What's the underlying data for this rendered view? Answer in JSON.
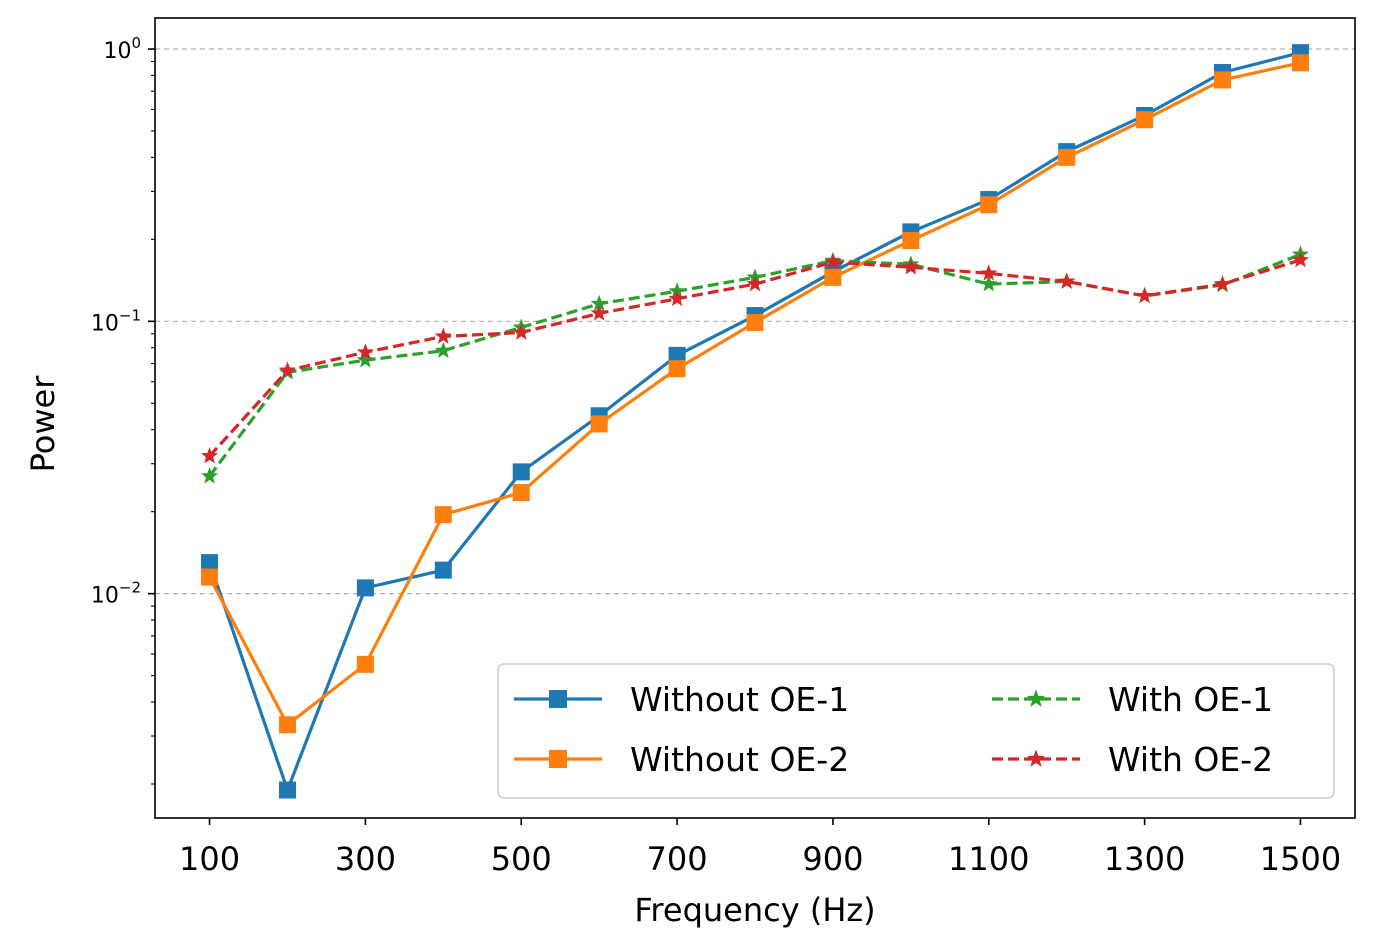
{
  "chart_data": {
    "type": "line",
    "title": "",
    "xlabel": "Frequency (Hz)",
    "ylabel": "Power",
    "yscale": "log",
    "ylim": [
      0.0015,
      1.3
    ],
    "xlim": [
      30,
      1570
    ],
    "x": [
      100,
      200,
      300,
      400,
      500,
      600,
      700,
      800,
      900,
      1000,
      1100,
      1200,
      1300,
      1400,
      1500
    ],
    "xticks": [
      100,
      300,
      500,
      700,
      900,
      1100,
      1300,
      1500
    ],
    "xtick_labels": [
      "100",
      "300",
      "500",
      "700",
      "900",
      "1100",
      "1300",
      "1500"
    ],
    "yticks": [
      {
        "value": 1,
        "base": "10",
        "exp": "0"
      },
      {
        "value": 0.1,
        "base": "10",
        "exp": "−1"
      },
      {
        "value": 0.01,
        "base": "10",
        "exp": "−2"
      }
    ],
    "grid": "y-major-dashed",
    "legend_position": "bottom-right",
    "series": [
      {
        "name": "Without OE-1",
        "color": "#1f77b4",
        "linestyle": "solid",
        "marker": "square",
        "values": [
          0.013,
          0.0019,
          0.0105,
          0.0122,
          0.028,
          0.045,
          0.075,
          0.105,
          0.152,
          0.213,
          0.28,
          0.42,
          0.57,
          0.82,
          0.97
        ]
      },
      {
        "name": "Without OE-2",
        "color": "#ff7f0e",
        "linestyle": "solid",
        "marker": "square",
        "values": [
          0.0115,
          0.0033,
          0.0055,
          0.0195,
          0.0235,
          0.042,
          0.067,
          0.099,
          0.145,
          0.198,
          0.268,
          0.4,
          0.55,
          0.77,
          0.89
        ]
      },
      {
        "name": "With OE-1",
        "color": "#2ca02c",
        "linestyle": "dashed",
        "marker": "star",
        "values": [
          0.027,
          0.065,
          0.072,
          0.078,
          0.095,
          0.116,
          0.129,
          0.145,
          0.167,
          0.162,
          0.137,
          0.14,
          0.124,
          0.136,
          0.176
        ]
      },
      {
        "name": "With OE-2",
        "color": "#d62728",
        "linestyle": "dashed",
        "marker": "star",
        "values": [
          0.032,
          0.066,
          0.077,
          0.088,
          0.091,
          0.107,
          0.121,
          0.137,
          0.165,
          0.158,
          0.15,
          0.14,
          0.124,
          0.137,
          0.168
        ]
      }
    ]
  }
}
